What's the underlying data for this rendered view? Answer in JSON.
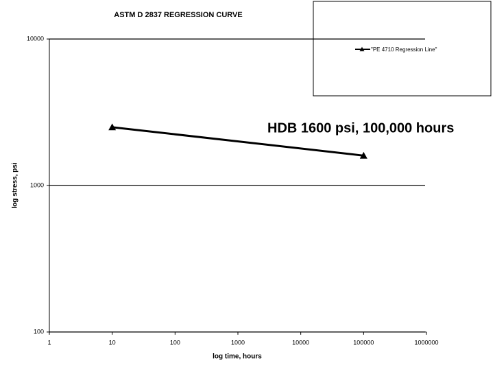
{
  "chart_data": {
    "type": "line",
    "title": "ASTM D 2837 REGRESSION CURVE",
    "x_label": "log time, hours",
    "y_label": "log stress, psi",
    "annotation": "HDB 1600 psi, 100,000 hours",
    "x": [
      10,
      100000
    ],
    "series": [
      {
        "name": "\"PE 4710 Regression Line\"",
        "color": "#000000",
        "marker": "triangle",
        "values": [
          2500,
          1600
        ]
      }
    ],
    "x_log": true,
    "y_log": true,
    "xlim": [
      1,
      1000000
    ],
    "xticks": [
      1,
      10,
      100,
      1000,
      10000,
      100000,
      1000000
    ],
    "ylim": [
      100,
      10000
    ],
    "yticks": [
      100,
      1000,
      10000
    ],
    "grid": true,
    "legend_position": "top-right"
  }
}
